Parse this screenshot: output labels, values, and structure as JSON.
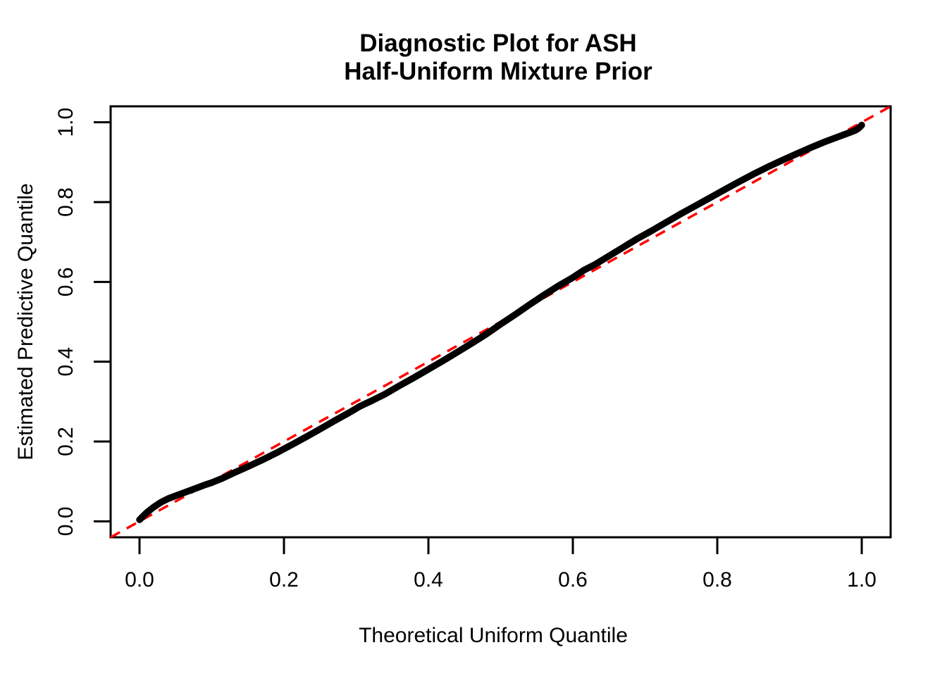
{
  "figure": {
    "title_line1": "Diagnostic Plot for ASH",
    "title_line2": "Half-Uniform Mixture Prior",
    "background": "#ffffff"
  },
  "chart_data": {
    "type": "line",
    "title": "Diagnostic Plot for ASH\nHalf-Uniform Mixture Prior",
    "xlabel": "Theoretical Uniform Quantile",
    "ylabel": "Estimated Predictive Quantile",
    "xlim": [
      -0.04,
      1.04
    ],
    "ylim": [
      -0.04,
      1.04
    ],
    "grid": false,
    "legend": "none",
    "x_ticks": [
      0.0,
      0.2,
      0.4,
      0.6,
      0.8,
      1.0
    ],
    "y_ticks": [
      0.0,
      0.2,
      0.4,
      0.6,
      0.8,
      1.0
    ],
    "x_tick_labels": [
      "0.0",
      "0.2",
      "0.4",
      "0.6",
      "0.8",
      "1.0"
    ],
    "y_tick_labels": [
      "0.0",
      "0.2",
      "0.4",
      "0.6",
      "0.8",
      "1.0"
    ],
    "colors": {
      "qq_curve": "#000000",
      "reference_line": "#ff0000",
      "axis": "#000000"
    },
    "series": [
      {
        "name": "estimated-predictive-quantile-curve",
        "type": "line",
        "style": "solid",
        "color": "#000000",
        "stroke_width": 9.5,
        "points": [
          [
            0.0,
            0.004
          ],
          [
            0.005,
            0.013
          ],
          [
            0.01,
            0.022
          ],
          [
            0.02,
            0.036
          ],
          [
            0.03,
            0.048
          ],
          [
            0.04,
            0.057
          ],
          [
            0.05,
            0.064
          ],
          [
            0.065,
            0.074
          ],
          [
            0.08,
            0.084
          ],
          [
            0.09,
            0.091
          ],
          [
            0.1,
            0.097
          ],
          [
            0.115,
            0.108
          ],
          [
            0.13,
            0.121
          ],
          [
            0.15,
            0.137
          ],
          [
            0.17,
            0.154
          ],
          [
            0.19,
            0.172
          ],
          [
            0.21,
            0.191
          ],
          [
            0.23,
            0.211
          ],
          [
            0.25,
            0.231
          ],
          [
            0.27,
            0.252
          ],
          [
            0.29,
            0.272
          ],
          [
            0.305,
            0.288
          ],
          [
            0.32,
            0.301
          ],
          [
            0.34,
            0.319
          ],
          [
            0.36,
            0.34
          ],
          [
            0.38,
            0.36
          ],
          [
            0.4,
            0.381
          ],
          [
            0.42,
            0.402
          ],
          [
            0.44,
            0.424
          ],
          [
            0.46,
            0.446
          ],
          [
            0.48,
            0.469
          ],
          [
            0.5,
            0.494
          ],
          [
            0.52,
            0.518
          ],
          [
            0.54,
            0.543
          ],
          [
            0.56,
            0.567
          ],
          [
            0.58,
            0.59
          ],
          [
            0.6,
            0.611
          ],
          [
            0.615,
            0.629
          ],
          [
            0.63,
            0.643
          ],
          [
            0.65,
            0.665
          ],
          [
            0.67,
            0.687
          ],
          [
            0.69,
            0.709
          ],
          [
            0.71,
            0.729
          ],
          [
            0.73,
            0.75
          ],
          [
            0.75,
            0.771
          ],
          [
            0.77,
            0.791
          ],
          [
            0.79,
            0.811
          ],
          [
            0.81,
            0.831
          ],
          [
            0.83,
            0.851
          ],
          [
            0.85,
            0.87
          ],
          [
            0.87,
            0.888
          ],
          [
            0.89,
            0.905
          ],
          [
            0.91,
            0.921
          ],
          [
            0.93,
            0.937
          ],
          [
            0.95,
            0.952
          ],
          [
            0.965,
            0.962
          ],
          [
            0.98,
            0.972
          ],
          [
            0.99,
            0.979
          ],
          [
            0.995,
            0.984
          ],
          [
            0.998,
            0.989
          ],
          [
            1.0,
            0.993
          ]
        ]
      },
      {
        "name": "reference-identity-line",
        "type": "line",
        "style": "dashed",
        "color": "#ff0000",
        "stroke_width": 3.5,
        "dash": [
          15,
          11
        ],
        "points": [
          [
            -0.04,
            -0.04
          ],
          [
            1.04,
            1.04
          ]
        ]
      }
    ]
  }
}
